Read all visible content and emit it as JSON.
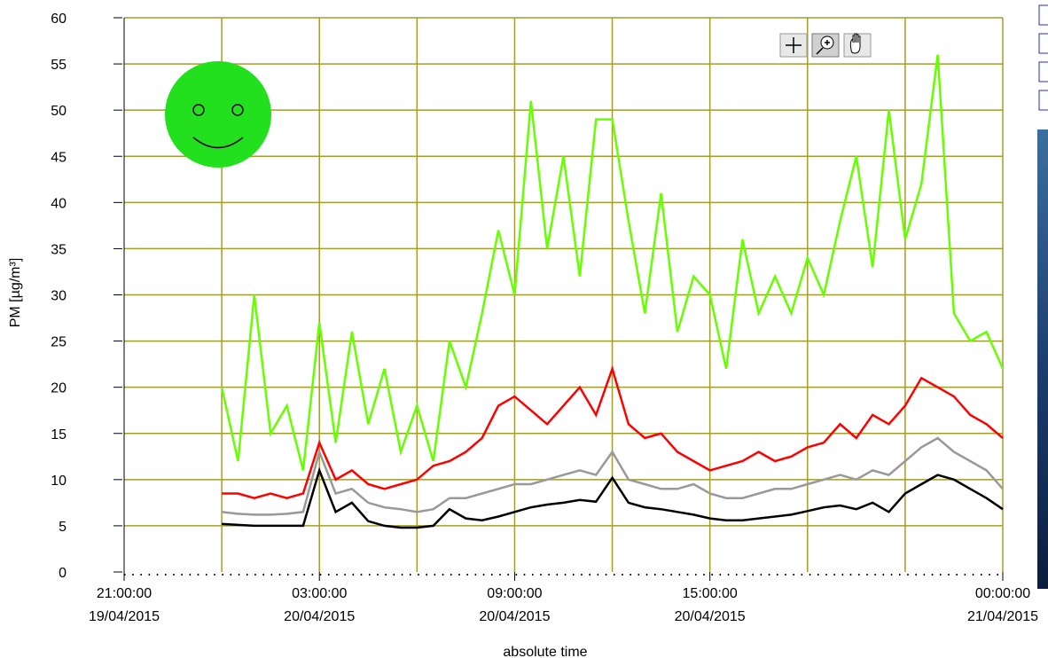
{
  "chart_data": {
    "type": "line",
    "ylabel": "PM [µg/m³]",
    "xlabel": "absolute time",
    "xlim": [
      "2015-04-19T21:00",
      "2015-04-21T00:00"
    ],
    "ylim": [
      0,
      60
    ],
    "yticks": [
      0,
      5,
      10,
      15,
      20,
      25,
      30,
      35,
      40,
      45,
      50,
      55,
      60
    ],
    "xticks": [
      {
        "value": "2015-04-19T21:00",
        "label": [
          "21:00:00",
          "19/04/2015"
        ]
      },
      {
        "value": "2015-04-20T03:00",
        "label": [
          "03:00:00",
          "20/04/2015"
        ]
      },
      {
        "value": "2015-04-20T09:00",
        "label": [
          "09:00:00",
          "20/04/2015"
        ]
      },
      {
        "value": "2015-04-20T15:00",
        "label": [
          "15:00:00",
          "20/04/2015"
        ]
      },
      {
        "value": "2015-04-21T00:00",
        "label": [
          "00:00:00",
          "21/04/2015"
        ]
      }
    ],
    "xgrid": [
      "2015-04-20T00:00",
      "2015-04-20T03:00",
      "2015-04-20T06:00",
      "2015-04-20T09:00",
      "2015-04-20T12:00",
      "2015-04-20T15:00",
      "2015-04-20T18:00",
      "2015-04-20T21:00",
      "2015-04-21T00:00"
    ],
    "grid": true,
    "grid_color": "#a39d2c",
    "x": [
      "2015-04-20T00:00",
      "2015-04-20T00:30",
      "2015-04-20T01:00",
      "2015-04-20T01:30",
      "2015-04-20T02:00",
      "2015-04-20T02:30",
      "2015-04-20T03:00",
      "2015-04-20T03:30",
      "2015-04-20T04:00",
      "2015-04-20T04:30",
      "2015-04-20T05:00",
      "2015-04-20T05:30",
      "2015-04-20T06:00",
      "2015-04-20T06:30",
      "2015-04-20T07:00",
      "2015-04-20T07:30",
      "2015-04-20T08:00",
      "2015-04-20T08:30",
      "2015-04-20T09:00",
      "2015-04-20T09:30",
      "2015-04-20T10:00",
      "2015-04-20T10:30",
      "2015-04-20T11:00",
      "2015-04-20T11:30",
      "2015-04-20T12:00",
      "2015-04-20T12:30",
      "2015-04-20T13:00",
      "2015-04-20T13:30",
      "2015-04-20T14:00",
      "2015-04-20T14:30",
      "2015-04-20T15:00",
      "2015-04-20T15:30",
      "2015-04-20T16:00",
      "2015-04-20T16:30",
      "2015-04-20T17:00",
      "2015-04-20T17:30",
      "2015-04-20T18:00",
      "2015-04-20T18:30",
      "2015-04-20T19:00",
      "2015-04-20T19:30",
      "2015-04-20T20:00",
      "2015-04-20T20:30",
      "2015-04-20T21:00",
      "2015-04-20T21:30",
      "2015-04-20T22:00",
      "2015-04-20T22:30",
      "2015-04-20T23:00",
      "2015-04-20T23:30",
      "2015-04-21T00:00"
    ],
    "series": [
      {
        "color": "#66ff00",
        "values": [
          20,
          12,
          30,
          15,
          18,
          11,
          27,
          14,
          26,
          16,
          22,
          13,
          18,
          12,
          25,
          20,
          28,
          37,
          30,
          51,
          35,
          45,
          32,
          49,
          49,
          38,
          28,
          41,
          26,
          32,
          30,
          22,
          36,
          28,
          32,
          28,
          34,
          30,
          38,
          45,
          33,
          50,
          36,
          42,
          56,
          28,
          25,
          26,
          22
        ]
      },
      {
        "color": "#ff0000",
        "values": [
          8.5,
          8.5,
          8.0,
          8.5,
          8.0,
          8.5,
          14.0,
          10.0,
          11.0,
          9.5,
          9.0,
          9.5,
          10.0,
          11.5,
          12.0,
          13.0,
          14.5,
          18.0,
          19.0,
          17.5,
          16.0,
          18.0,
          20.0,
          17.0,
          22.0,
          16.0,
          14.5,
          15.0,
          13.0,
          12.0,
          11.0,
          11.5,
          12.0,
          13.0,
          12.0,
          12.5,
          13.5,
          14.0,
          16.0,
          14.5,
          17.0,
          16.0,
          18.0,
          21.0,
          20.0,
          19.0,
          17.0,
          16.0,
          14.5
        ]
      },
      {
        "color": "#999999",
        "values": [
          6.5,
          6.3,
          6.2,
          6.2,
          6.3,
          6.5,
          13.0,
          8.5,
          9.0,
          7.5,
          7.0,
          6.8,
          6.5,
          6.8,
          8.0,
          8.0,
          8.5,
          9.0,
          9.5,
          9.5,
          10.0,
          10.5,
          11.0,
          10.5,
          13.0,
          10.0,
          9.5,
          9.0,
          9.0,
          9.5,
          8.5,
          8.0,
          8.0,
          8.5,
          9.0,
          9.0,
          9.5,
          10.0,
          10.5,
          10.0,
          11.0,
          10.5,
          12.0,
          13.5,
          14.5,
          13.0,
          12.0,
          11.0,
          9.0
        ]
      },
      {
        "color": "#000000",
        "values": [
          5.2,
          5.1,
          5.0,
          5.0,
          5.0,
          5.0,
          11.0,
          6.5,
          7.5,
          5.5,
          5.0,
          4.8,
          4.8,
          5.0,
          6.8,
          5.8,
          5.6,
          6.0,
          6.5,
          7.0,
          7.3,
          7.5,
          7.8,
          7.6,
          10.2,
          7.5,
          7.0,
          6.8,
          6.5,
          6.2,
          5.8,
          5.6,
          5.6,
          5.8,
          6.0,
          6.2,
          6.6,
          7.0,
          7.2,
          6.8,
          7.5,
          6.5,
          8.5,
          9.5,
          10.5,
          10.0,
          9.0,
          8.0,
          6.8
        ]
      }
    ]
  }
}
